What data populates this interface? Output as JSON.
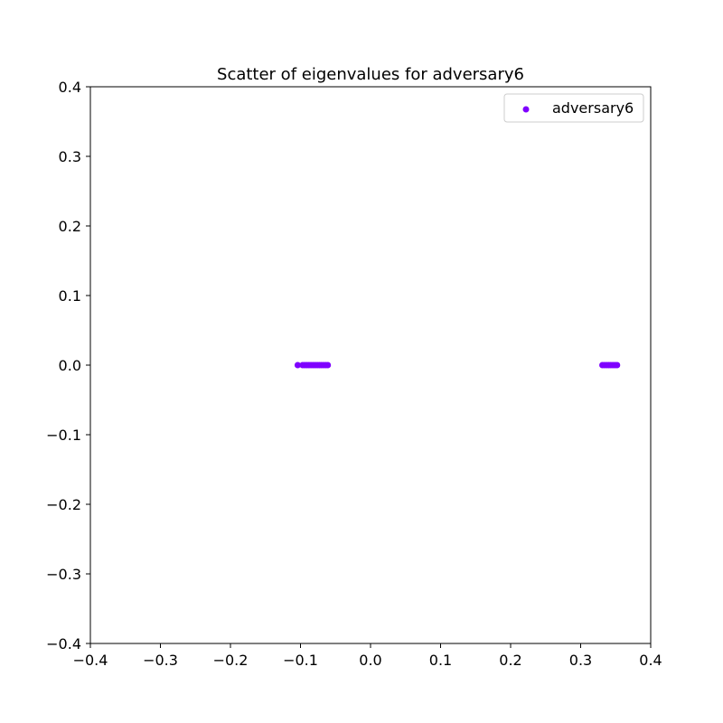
{
  "chart_data": {
    "type": "scatter",
    "title": "Scatter of eigenvalues for adversary6",
    "xlabel": "",
    "ylabel": "",
    "xlim": [
      -0.4,
      0.4
    ],
    "ylim": [
      -0.4,
      0.4
    ],
    "x_ticks": [
      -0.4,
      -0.3,
      -0.2,
      -0.1,
      0.0,
      0.1,
      0.2,
      0.3,
      0.4
    ],
    "y_ticks": [
      -0.4,
      -0.3,
      -0.2,
      -0.1,
      0.0,
      0.1,
      0.2,
      0.3,
      0.4
    ],
    "x_tick_labels": [
      "−0.4",
      "−0.3",
      "−0.2",
      "−0.1",
      "0.0",
      "0.1",
      "0.2",
      "0.3",
      "0.4"
    ],
    "y_tick_labels": [
      "−0.4",
      "−0.3",
      "−0.2",
      "−0.1",
      "0.0",
      "0.1",
      "0.2",
      "0.3",
      "0.4"
    ],
    "grid": false,
    "legend_position": "top-right",
    "series": [
      {
        "name": "adversary6",
        "color": "#7f00ff",
        "points": [
          {
            "x": -0.104,
            "y": 0.0
          },
          {
            "x": -0.097,
            "y": 0.0
          },
          {
            "x": -0.094,
            "y": 0.0
          },
          {
            "x": -0.091,
            "y": 0.0
          },
          {
            "x": -0.088,
            "y": 0.0
          },
          {
            "x": -0.085,
            "y": 0.0
          },
          {
            "x": -0.082,
            "y": 0.0
          },
          {
            "x": -0.079,
            "y": 0.0
          },
          {
            "x": -0.076,
            "y": 0.0
          },
          {
            "x": -0.073,
            "y": 0.0
          },
          {
            "x": -0.07,
            "y": 0.0
          },
          {
            "x": -0.067,
            "y": 0.0
          },
          {
            "x": -0.064,
            "y": 0.0
          },
          {
            "x": -0.061,
            "y": 0.0
          },
          {
            "x": 0.331,
            "y": 0.0
          },
          {
            "x": 0.334,
            "y": 0.0
          },
          {
            "x": 0.337,
            "y": 0.0
          },
          {
            "x": 0.34,
            "y": 0.0
          },
          {
            "x": 0.343,
            "y": 0.0
          },
          {
            "x": 0.346,
            "y": 0.0
          },
          {
            "x": 0.349,
            "y": 0.0
          },
          {
            "x": 0.352,
            "y": 0.0
          }
        ]
      }
    ]
  }
}
